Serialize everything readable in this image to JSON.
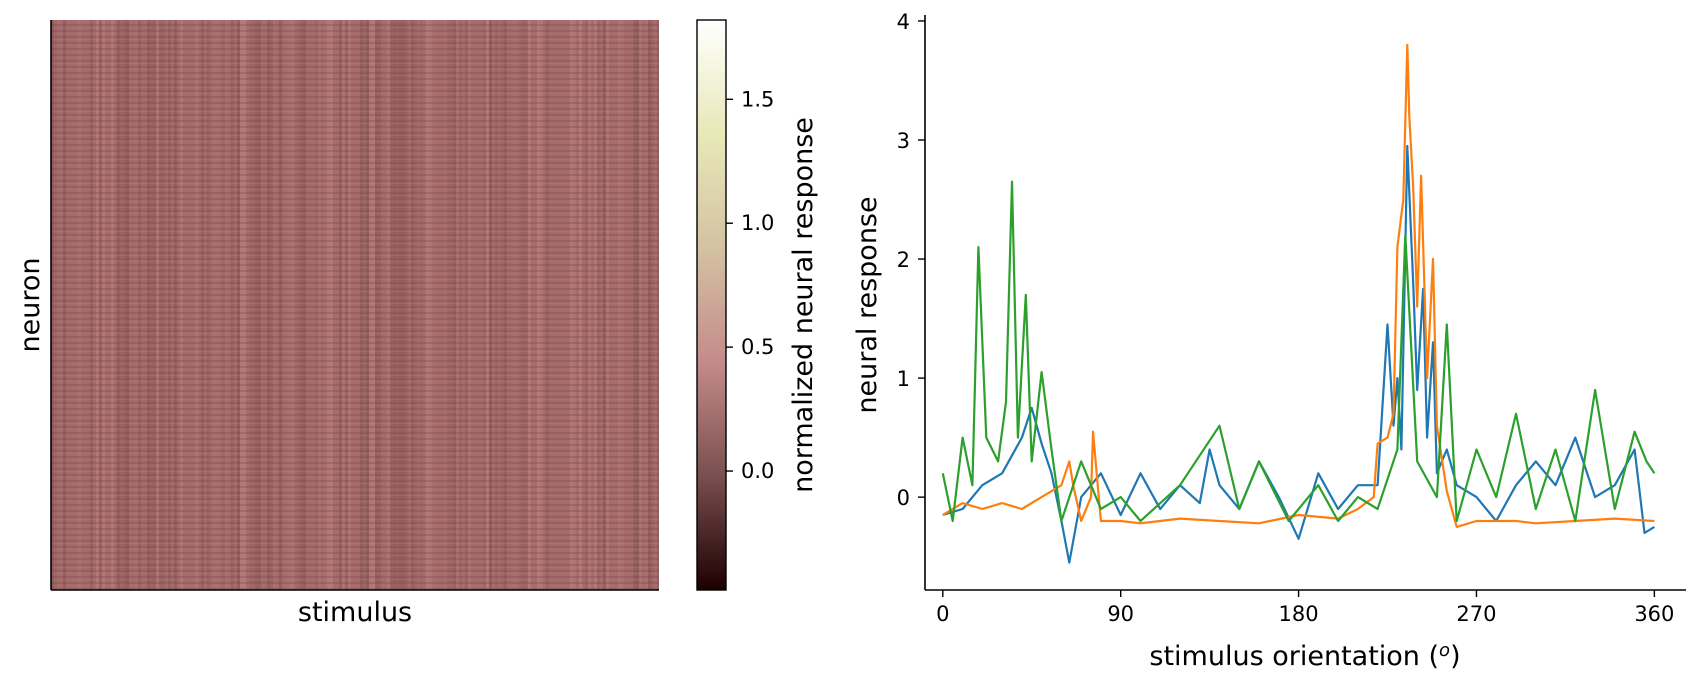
{
  "heatmap_panel": {
    "xlabel": "stimulus",
    "ylabel": "neuron"
  },
  "colorbar": {
    "label": "normalized neural response",
    "ticks": [
      0.0,
      0.5,
      1.0,
      1.5
    ],
    "tick_labels": [
      "0.0",
      "0.5",
      "1.0",
      "1.5"
    ],
    "range": [
      -0.48,
      1.82
    ],
    "colormap": "pink",
    "colormap_stops": [
      "#1e0000",
      "#7a4f4f",
      "#c48b8b",
      "#d4c2a2",
      "#e8e8b8",
      "#ffffff"
    ]
  },
  "chart_data": [
    {
      "type": "heatmap",
      "xlabel": "stimulus",
      "ylabel": "neuron",
      "title": "",
      "value_range": [
        -0.48,
        1.82
      ],
      "typical_value": 0.35,
      "colorbar_label": "normalized neural response",
      "colorbar_ticks": [
        0.0,
        0.5,
        1.0,
        1.5
      ],
      "grid": false
    },
    {
      "type": "line",
      "title": "",
      "xlabel": "stimulus orientation (o)",
      "ylabel": "neural response",
      "xlim": [
        -9,
        376
      ],
      "ylim": [
        -0.78,
        4.05
      ],
      "xticks": [
        0,
        90,
        180,
        270,
        360
      ],
      "yticks": [
        0,
        1,
        2,
        3,
        4
      ],
      "grid": false,
      "legend": "none",
      "series": [
        {
          "color": "#1f77b4",
          "x": [
            0,
            10,
            20,
            30,
            40,
            45,
            50,
            55,
            60,
            64,
            70,
            80,
            90,
            100,
            110,
            120,
            130,
            135,
            140,
            150,
            160,
            170,
            180,
            190,
            200,
            210,
            220,
            225,
            228,
            230,
            232,
            235,
            238,
            240,
            243,
            245,
            248,
            250,
            255,
            260,
            270,
            280,
            290,
            300,
            310,
            320,
            330,
            340,
            350,
            355,
            360
          ],
          "y": [
            -0.15,
            -0.1,
            0.1,
            0.2,
            0.5,
            0.75,
            0.45,
            0.2,
            -0.2,
            -0.55,
            0.0,
            0.2,
            -0.15,
            0.2,
            -0.1,
            0.1,
            -0.05,
            0.4,
            0.1,
            -0.1,
            0.3,
            0.0,
            -0.35,
            0.2,
            -0.1,
            0.1,
            0.1,
            1.45,
            0.6,
            1.0,
            0.4,
            2.95,
            1.8,
            0.9,
            1.75,
            0.5,
            1.3,
            0.2,
            0.4,
            0.1,
            0.0,
            -0.2,
            0.1,
            0.3,
            0.1,
            0.5,
            0.0,
            0.1,
            0.4,
            -0.3,
            -0.25
          ]
        },
        {
          "color": "#ff7f0e",
          "x": [
            0,
            10,
            20,
            30,
            40,
            50,
            55,
            60,
            64,
            66,
            70,
            75,
            76,
            80,
            90,
            100,
            120,
            140,
            160,
            180,
            200,
            210,
            218,
            220,
            225,
            228,
            230,
            233,
            235,
            236,
            238,
            240,
            242,
            245,
            248,
            250,
            255,
            260,
            270,
            290,
            300,
            320,
            340,
            360
          ],
          "y": [
            -0.15,
            -0.05,
            -0.1,
            -0.05,
            -0.1,
            0.0,
            0.05,
            0.1,
            0.3,
            0.1,
            -0.2,
            0.0,
            0.55,
            -0.2,
            -0.2,
            -0.22,
            -0.18,
            -0.2,
            -0.22,
            -0.15,
            -0.18,
            -0.1,
            0.0,
            0.45,
            0.5,
            0.7,
            2.1,
            2.5,
            3.8,
            3.2,
            2.6,
            1.6,
            2.7,
            1.0,
            2.0,
            0.6,
            0.05,
            -0.25,
            -0.2,
            -0.2,
            -0.22,
            -0.2,
            -0.18,
            -0.2
          ]
        },
        {
          "color": "#2ca02c",
          "x": [
            0,
            5,
            10,
            15,
            18,
            22,
            28,
            32,
            35,
            38,
            42,
            45,
            50,
            55,
            60,
            70,
            80,
            90,
            100,
            120,
            140,
            150,
            160,
            175,
            190,
            200,
            210,
            220,
            230,
            234,
            240,
            250,
            255,
            260,
            270,
            280,
            290,
            300,
            310,
            320,
            330,
            340,
            350,
            356,
            360
          ],
          "y": [
            0.2,
            -0.2,
            0.5,
            0.1,
            2.1,
            0.5,
            0.3,
            0.8,
            2.65,
            0.5,
            1.7,
            0.3,
            1.05,
            0.4,
            -0.2,
            0.3,
            -0.1,
            0.0,
            -0.2,
            0.1,
            0.6,
            -0.1,
            0.3,
            -0.2,
            0.1,
            -0.2,
            0.0,
            -0.1,
            0.4,
            2.2,
            0.3,
            0.0,
            1.45,
            -0.2,
            0.4,
            0.0,
            0.7,
            -0.1,
            0.4,
            -0.2,
            0.9,
            -0.1,
            0.55,
            0.3,
            0.2
          ]
        }
      ]
    }
  ]
}
